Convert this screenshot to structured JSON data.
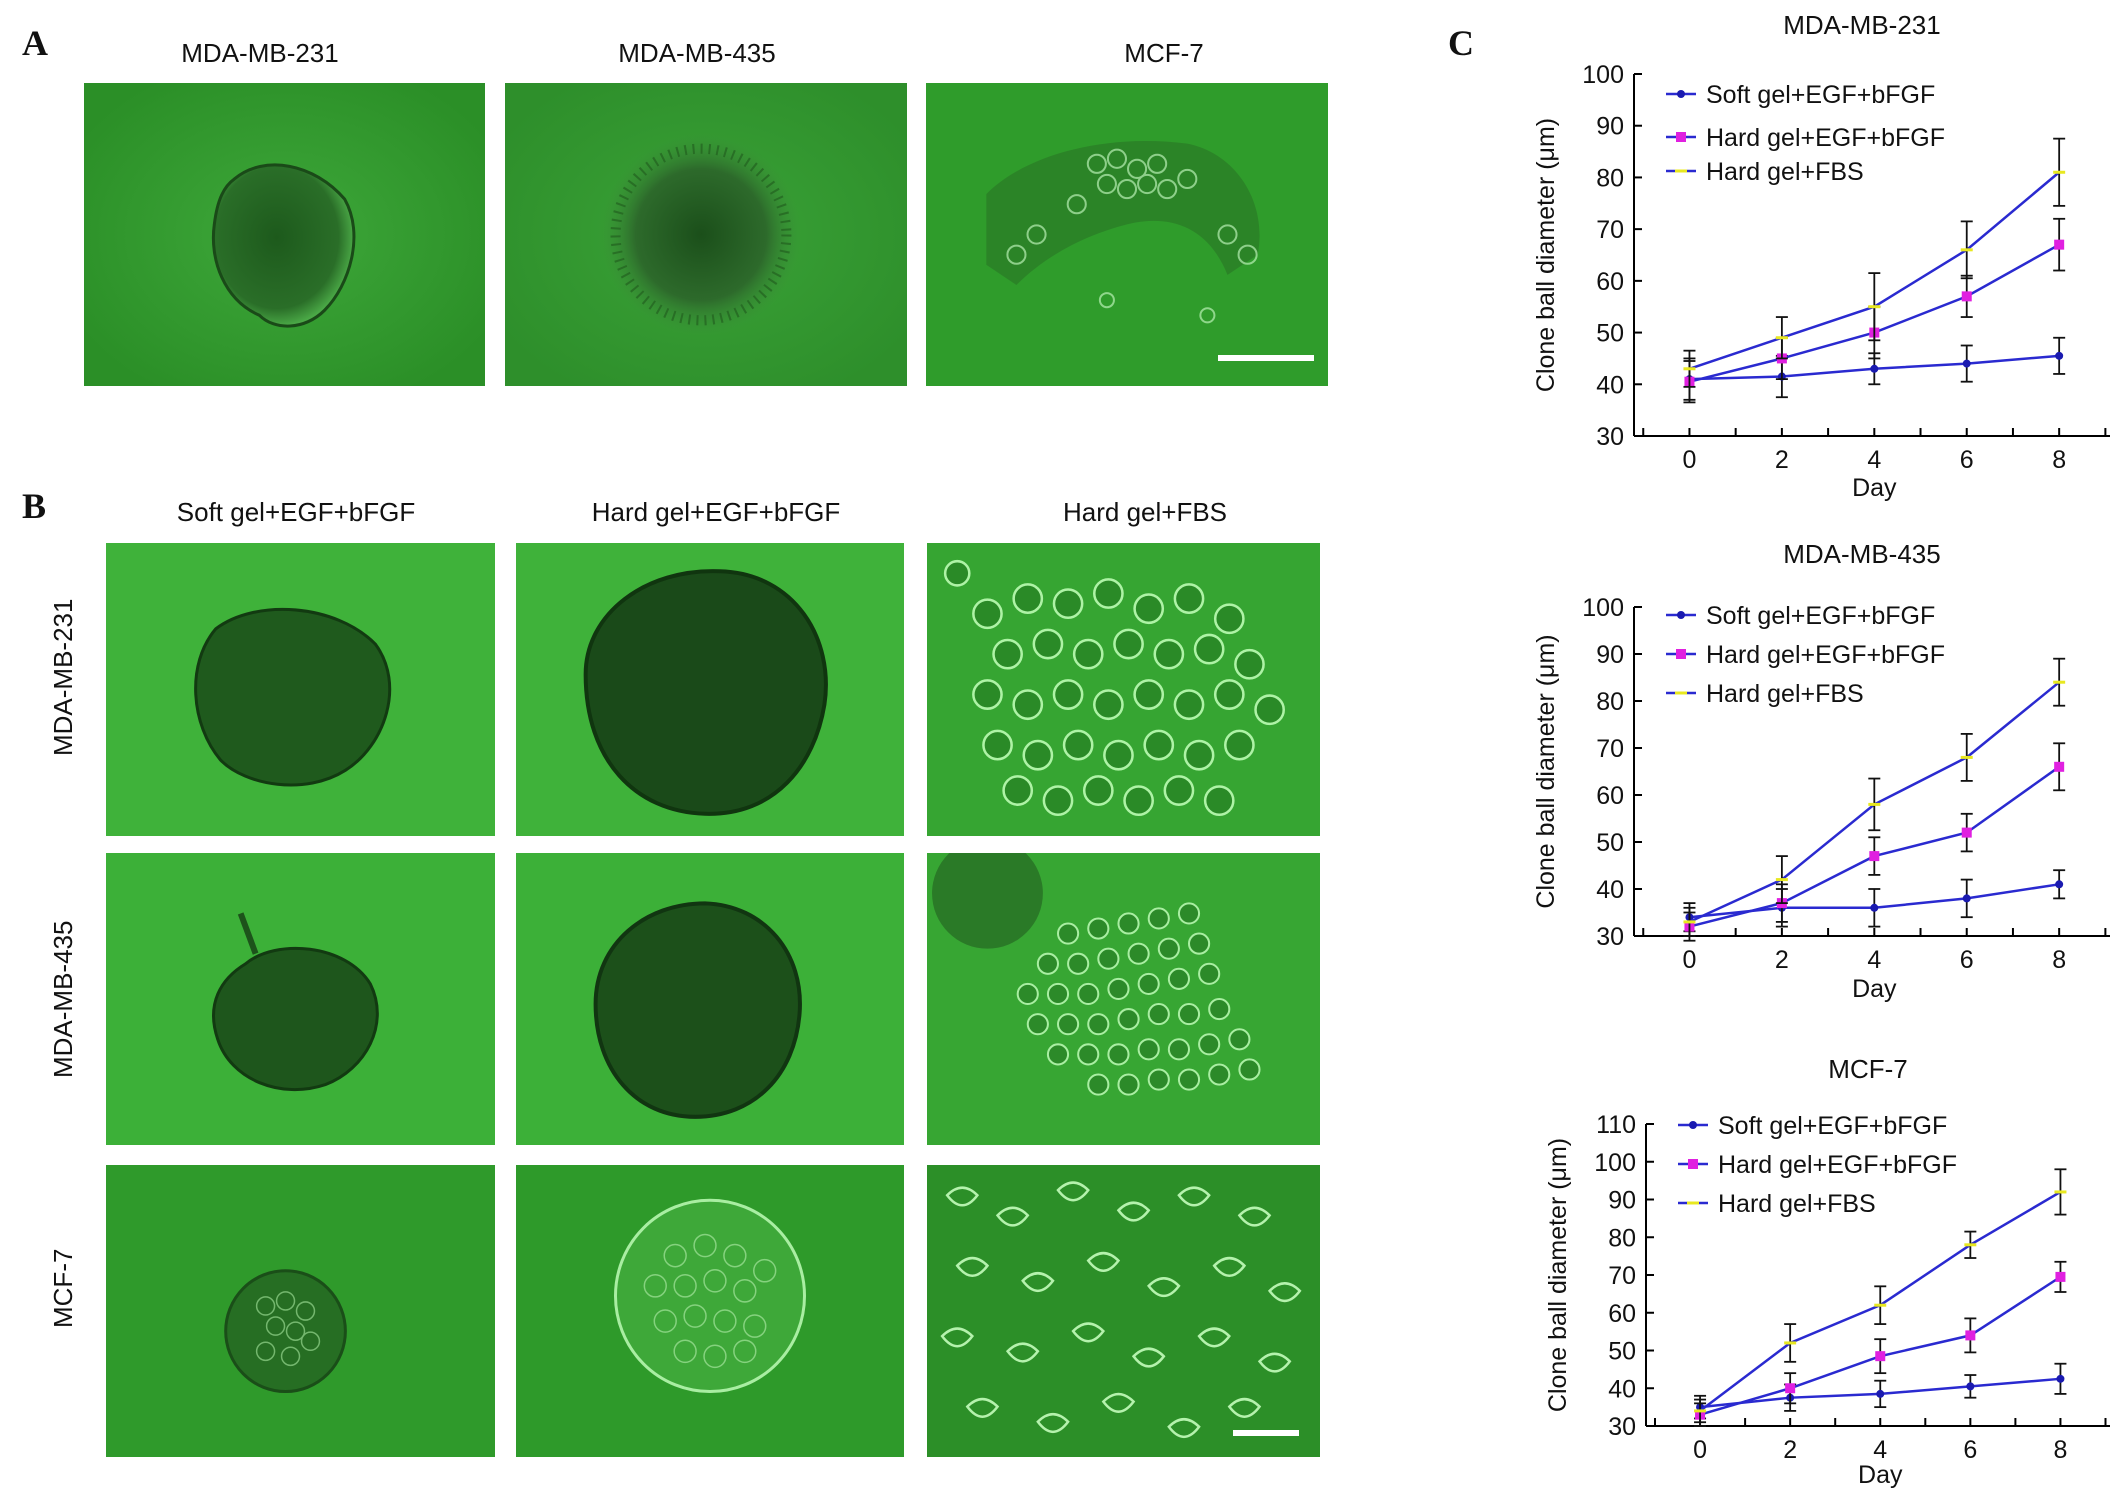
{
  "panels": {
    "a_letter": "A",
    "b_letter": "B",
    "c_letter": "C"
  },
  "panel_a": {
    "titles": [
      "MDA-MB-231",
      "MDA-MB-435",
      "MCF-7"
    ]
  },
  "panel_b": {
    "col_titles": [
      "Soft gel+EGF+bFGF",
      "Hard gel+EGF+bFGF",
      "Hard gel+FBS"
    ],
    "row_labels": [
      "MDA-MB-231",
      "MDA-MB-435",
      "MCF-7"
    ]
  },
  "colors": {
    "micro_bg": "#2f9a2a",
    "soft": "#1a1ab0",
    "hard": "#e020e0",
    "fbs": "#e8e820",
    "line": "#2a2ad0"
  },
  "chart_data": [
    {
      "type": "line",
      "title": "MDA-MB-231",
      "xlabel": "Day",
      "ylabel": "Clone ball diameter (μm)",
      "x": [
        0,
        2,
        4,
        6,
        8
      ],
      "ylim": [
        30,
        100
      ],
      "yticks": [
        30,
        40,
        50,
        60,
        70,
        80,
        90,
        100
      ],
      "legend": "top-left",
      "series": [
        {
          "name": "Soft gel+EGF+bFGF",
          "values": [
            41,
            41.5,
            43,
            44,
            45.5
          ],
          "err": [
            4,
            4,
            3,
            3.5,
            3.5
          ]
        },
        {
          "name": "Hard gel+EGF+bFGF",
          "values": [
            40.5,
            45,
            50,
            57,
            67
          ],
          "err": [
            4,
            4,
            5,
            4,
            5
          ]
        },
        {
          "name": "Hard gel+FBS",
          "values": [
            43,
            49,
            55,
            66,
            81
          ],
          "err": [
            3.5,
            4,
            6.5,
            5.5,
            6.5
          ]
        }
      ]
    },
    {
      "type": "line",
      "title": "MDA-MB-435",
      "xlabel": "Day",
      "ylabel": "Clone ball diameter (μm)",
      "x": [
        0,
        2,
        4,
        6,
        8
      ],
      "ylim": [
        30,
        100
      ],
      "yticks": [
        30,
        40,
        50,
        60,
        70,
        80,
        90,
        100
      ],
      "legend": "top-left",
      "series": [
        {
          "name": "Soft gel+EGF+bFGF",
          "values": [
            34,
            36,
            36,
            38,
            41
          ],
          "err": [
            3,
            4,
            4,
            4,
            3
          ]
        },
        {
          "name": "Hard gel+EGF+bFGF",
          "values": [
            32,
            37,
            47,
            52,
            66
          ],
          "err": [
            3,
            4,
            4,
            4,
            5
          ]
        },
        {
          "name": "Hard gel+FBS",
          "values": [
            33,
            42,
            58,
            68,
            84
          ],
          "err": [
            3,
            5,
            5.5,
            5,
            5
          ]
        }
      ]
    },
    {
      "type": "line",
      "title": "MCF-7",
      "xlabel": "Day",
      "ylabel": "Clone ball diameter (μm)",
      "x": [
        0,
        2,
        4,
        6,
        8
      ],
      "ylim": [
        30,
        110
      ],
      "yticks": [
        30,
        40,
        50,
        60,
        70,
        80,
        90,
        100,
        110
      ],
      "legend": "top-left",
      "series": [
        {
          "name": "Soft gel+EGF+bFGF",
          "values": [
            35,
            37.5,
            38.5,
            40.5,
            42.5
          ],
          "err": [
            3,
            3.5,
            3.5,
            3,
            4
          ]
        },
        {
          "name": "Hard gel+EGF+bFGF",
          "values": [
            33,
            40,
            48.5,
            54,
            69.5
          ],
          "err": [
            3,
            4,
            4.5,
            4.5,
            4
          ]
        },
        {
          "name": "Hard gel+FBS",
          "values": [
            34,
            52,
            62,
            78,
            92
          ],
          "err": [
            3,
            5,
            5,
            3.5,
            6
          ]
        }
      ]
    }
  ]
}
